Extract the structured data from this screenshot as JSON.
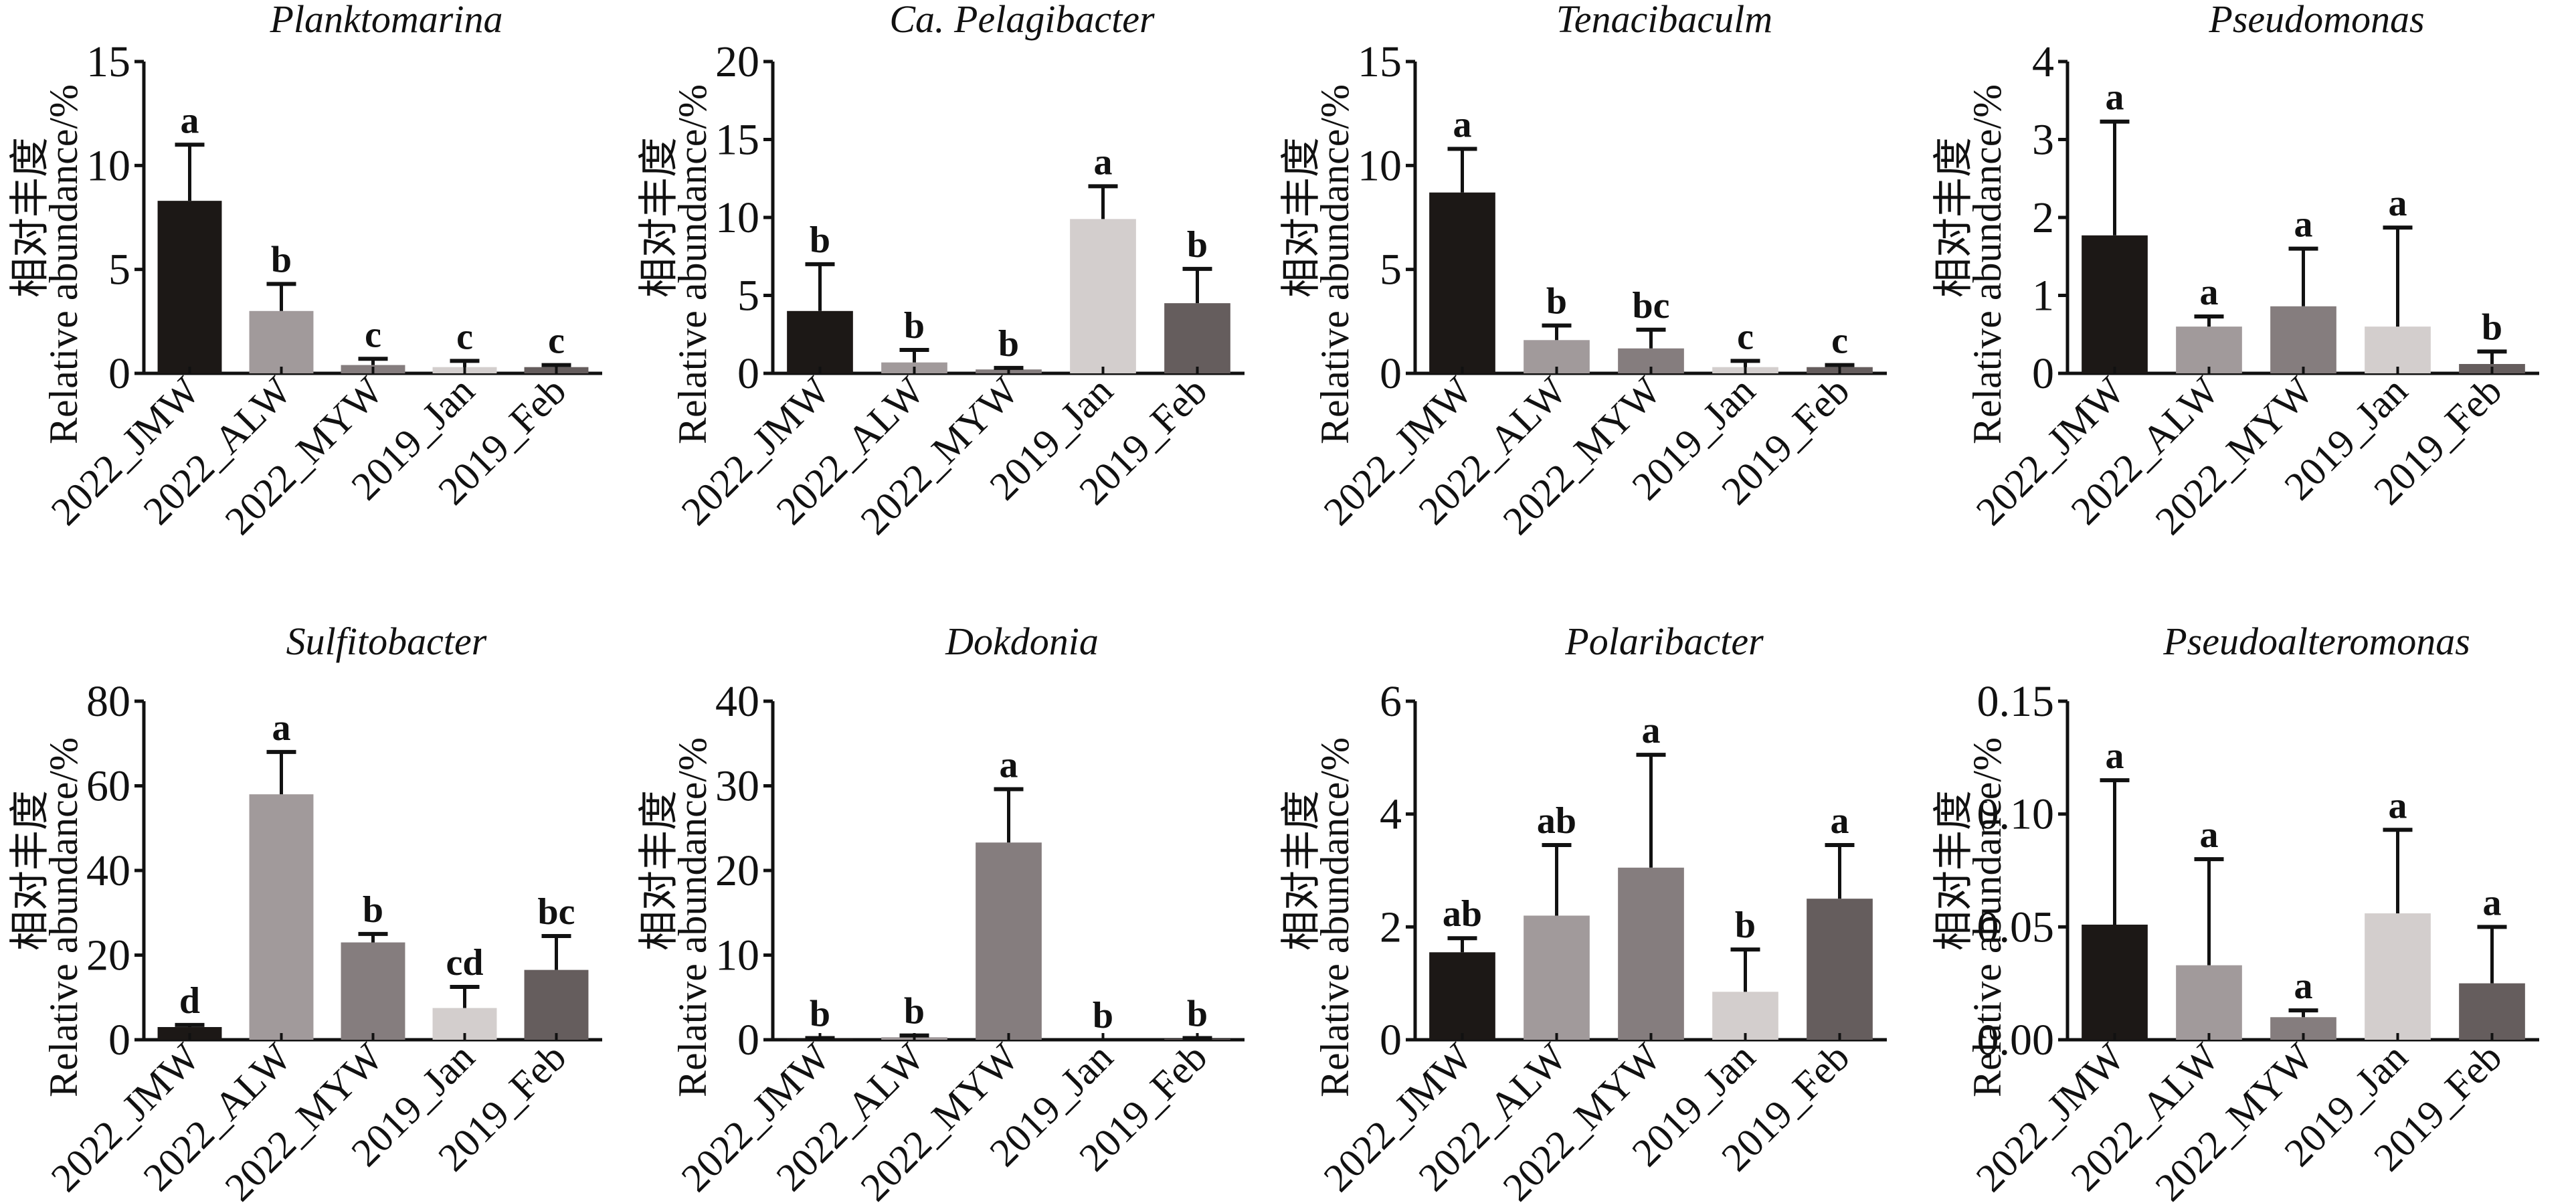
{
  "chart_data": [
    {
      "type": "bar",
      "title": "Planktomarina",
      "ylabel_cn": "相对丰度",
      "ylabel": "Relative abundance/%",
      "categories": [
        "2022_JMW",
        "2022_ALW",
        "2022_MYW",
        "2019_Jan",
        "2019_Feb"
      ],
      "values": [
        8.3,
        3.0,
        0.4,
        0.3,
        0.3
      ],
      "error_upper": [
        11.0,
        4.3,
        0.7,
        0.6,
        0.4
      ],
      "significance": [
        "a",
        "b",
        "c",
        "c",
        "c"
      ],
      "ylim": [
        0,
        15
      ],
      "yticks": [
        "0",
        "5",
        "10",
        "15"
      ],
      "ytick_values": [
        0,
        5,
        10,
        15
      ]
    },
    {
      "type": "bar",
      "title": "Ca. Pelagibacter",
      "ylabel_cn": "相对丰度",
      "ylabel": "Relative abundance/%",
      "categories": [
        "2022_JMW",
        "2022_ALW",
        "2022_MYW",
        "2019_Jan",
        "2019_Feb"
      ],
      "values": [
        4.0,
        0.7,
        0.25,
        9.9,
        4.5
      ],
      "error_upper": [
        7.0,
        1.5,
        0.35,
        12.0,
        6.7
      ],
      "significance": [
        "b",
        "b",
        "b",
        "a",
        "b"
      ],
      "ylim": [
        0,
        20
      ],
      "yticks": [
        "0",
        "5",
        "10",
        "15",
        "20"
      ],
      "ytick_values": [
        0,
        5,
        10,
        15,
        20
      ]
    },
    {
      "type": "bar",
      "title": "Tenacibaculm",
      "ylabel_cn": "相对丰度",
      "ylabel": "Relative abundance/%",
      "categories": [
        "2022_JMW",
        "2022_ALW",
        "2022_MYW",
        "2019_Jan",
        "2019_Feb"
      ],
      "values": [
        8.7,
        1.6,
        1.2,
        0.3,
        0.3
      ],
      "error_upper": [
        10.8,
        2.3,
        2.1,
        0.6,
        0.4
      ],
      "significance": [
        "a",
        "b",
        "bc",
        "c",
        "c"
      ],
      "ylim": [
        0,
        15
      ],
      "yticks": [
        "0",
        "5",
        "10",
        "15"
      ],
      "ytick_values": [
        0,
        5,
        10,
        15
      ]
    },
    {
      "type": "bar",
      "title": "Pseudomonas",
      "ylabel_cn": "相对丰度",
      "ylabel": "Relative abundance/%",
      "categories": [
        "2022_JMW",
        "2022_ALW",
        "2022_MYW",
        "2019_Jan",
        "2019_Feb"
      ],
      "values": [
        1.77,
        0.6,
        0.86,
        0.6,
        0.12
      ],
      "error_upper": [
        3.23,
        0.73,
        1.6,
        1.87,
        0.28
      ],
      "significance": [
        "a",
        "a",
        "a",
        "a",
        "b"
      ],
      "ylim": [
        0,
        4
      ],
      "yticks": [
        "0",
        "1",
        "2",
        "3",
        "4"
      ],
      "ytick_values": [
        0,
        1,
        2,
        3,
        4
      ]
    },
    {
      "type": "bar",
      "title": "Sulfitobacter",
      "ylabel_cn": "相对丰度",
      "ylabel": "Relative abundance/%",
      "categories": [
        "2022_JMW",
        "2022_ALW",
        "2022_MYW",
        "2019_Jan",
        "2019_Feb"
      ],
      "values": [
        3.0,
        58.0,
        23.0,
        7.5,
        16.5
      ],
      "error_upper": [
        3.5,
        68.0,
        25.0,
        12.5,
        24.5
      ],
      "significance": [
        "d",
        "a",
        "b",
        "cd",
        "bc"
      ],
      "ylim": [
        0,
        80
      ],
      "yticks": [
        "0",
        "20",
        "40",
        "60",
        "80"
      ],
      "ytick_values": [
        0,
        20,
        40,
        60,
        80
      ]
    },
    {
      "type": "bar",
      "title": "Dokdonia",
      "ylabel_cn": "相对丰度",
      "ylabel": "Relative abundance/%",
      "categories": [
        "2022_JMW",
        "2022_ALW",
        "2022_MYW",
        "2019_Jan",
        "2019_Feb"
      ],
      "values": [
        0.1,
        0.3,
        23.3,
        0.0,
        0.1
      ],
      "error_upper": [
        0.2,
        0.5,
        29.6,
        0.0,
        0.2
      ],
      "significance": [
        "b",
        "b",
        "a",
        "b",
        "b"
      ],
      "ylim": [
        0,
        40
      ],
      "yticks": [
        "0",
        "10",
        "20",
        "30",
        "40"
      ],
      "ytick_values": [
        0,
        10,
        20,
        30,
        40
      ]
    },
    {
      "type": "bar",
      "title": "Polaribacter",
      "ylabel_cn": "相对丰度",
      "ylabel": "Relative abundance/%",
      "categories": [
        "2022_JMW",
        "2022_ALW",
        "2022_MYW",
        "2019_Jan",
        "2019_Feb"
      ],
      "values": [
        1.55,
        2.2,
        3.05,
        0.85,
        2.5
      ],
      "error_upper": [
        1.8,
        3.45,
        5.05,
        1.6,
        3.45
      ],
      "significance": [
        "ab",
        "ab",
        "a",
        "b",
        "a"
      ],
      "ylim": [
        0,
        6
      ],
      "yticks": [
        "0",
        "2",
        "4",
        "6"
      ],
      "ytick_values": [
        0,
        2,
        4,
        6
      ]
    },
    {
      "type": "bar",
      "title": "Pseudoalteromonas",
      "ylabel_cn": "相对丰度",
      "ylabel": "Relative abundance/%",
      "categories": [
        "2022_JMW",
        "2022_ALW",
        "2022_MYW",
        "2019_Jan",
        "2019_Feb"
      ],
      "values": [
        0.051,
        0.033,
        0.01,
        0.056,
        0.025
      ],
      "error_upper": [
        0.115,
        0.08,
        0.013,
        0.093,
        0.05
      ],
      "significance": [
        "a",
        "a",
        "a",
        "a",
        "a"
      ],
      "ylim": [
        0,
        0.15
      ],
      "yticks": [
        "0.00",
        "0.05",
        "0.10",
        "0.15"
      ],
      "ytick_values": [
        0,
        0.05,
        0.1,
        0.15
      ]
    }
  ],
  "bar_colors": [
    "#1c1816",
    "#a19a9b",
    "#857d7e",
    "#d3cecd",
    "#655d5d"
  ],
  "grid": false,
  "legend": "none"
}
